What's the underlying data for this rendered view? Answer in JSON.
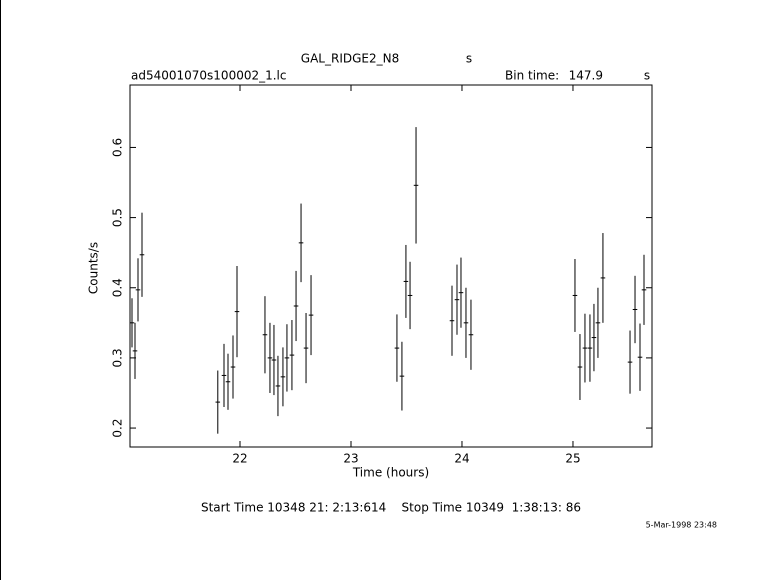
{
  "chart_data": {
    "type": "errorbar",
    "title": "GAL_RIDGE2_N8",
    "title_unit": "s",
    "file_name": "ad54001070s100002_1.lc",
    "bin_time_label": "Bin time:",
    "bin_time": 147.9,
    "bin_time_unit": "s",
    "x_label": "Time (hours)",
    "y_label": "Counts/s",
    "start_stop": "Start Time 10348 21: 2:13:614    Stop Time 10349  1:38:13: 86",
    "date_stamp": "5-Mar-1998 23:48",
    "color": "#000000",
    "x": [
      21.027,
      21.054,
      21.081,
      21.117,
      21.8,
      21.856,
      21.892,
      21.937,
      21.973,
      22.225,
      22.27,
      22.306,
      22.342,
      22.387,
      22.423,
      22.468,
      22.505,
      22.55,
      22.595,
      22.64,
      23.414,
      23.459,
      23.495,
      23.532,
      23.586,
      23.91,
      23.955,
      23.991,
      24.036,
      24.081,
      25.018,
      25.063,
      25.108,
      25.153,
      25.189,
      25.225,
      25.27,
      25.514,
      25.559,
      25.604,
      25.64
    ],
    "values": [
      0.35,
      0.31,
      0.397,
      0.447,
      0.237,
      0.275,
      0.266,
      0.287,
      0.366,
      0.333,
      0.3,
      0.297,
      0.26,
      0.273,
      0.3,
      0.304,
      0.374,
      0.464,
      0.314,
      0.361,
      0.314,
      0.274,
      0.409,
      0.389,
      0.546,
      0.353,
      0.383,
      0.393,
      0.35,
      0.333,
      0.389,
      0.287,
      0.314,
      0.314,
      0.329,
      0.35,
      0.414,
      0.294,
      0.369,
      0.301,
      0.397
    ],
    "errors": [
      0.035,
      0.04,
      0.045,
      0.06,
      0.045,
      0.045,
      0.04,
      0.045,
      0.065,
      0.055,
      0.05,
      0.05,
      0.043,
      0.042,
      0.048,
      0.05,
      0.05,
      0.056,
      0.05,
      0.057,
      0.048,
      0.049,
      0.052,
      0.048,
      0.083,
      0.05,
      0.05,
      0.05,
      0.05,
      0.05,
      0.052,
      0.047,
      0.049,
      0.048,
      0.048,
      0.05,
      0.064,
      0.045,
      0.048,
      0.048,
      0.05
    ],
    "xlim": [
      21.009,
      25.712
    ],
    "ylim": [
      0.173,
      0.689
    ],
    "xticks": [
      22,
      23,
      24,
      25
    ],
    "yticks": [
      0.2,
      0.3,
      0.4,
      0.5,
      0.6
    ]
  }
}
